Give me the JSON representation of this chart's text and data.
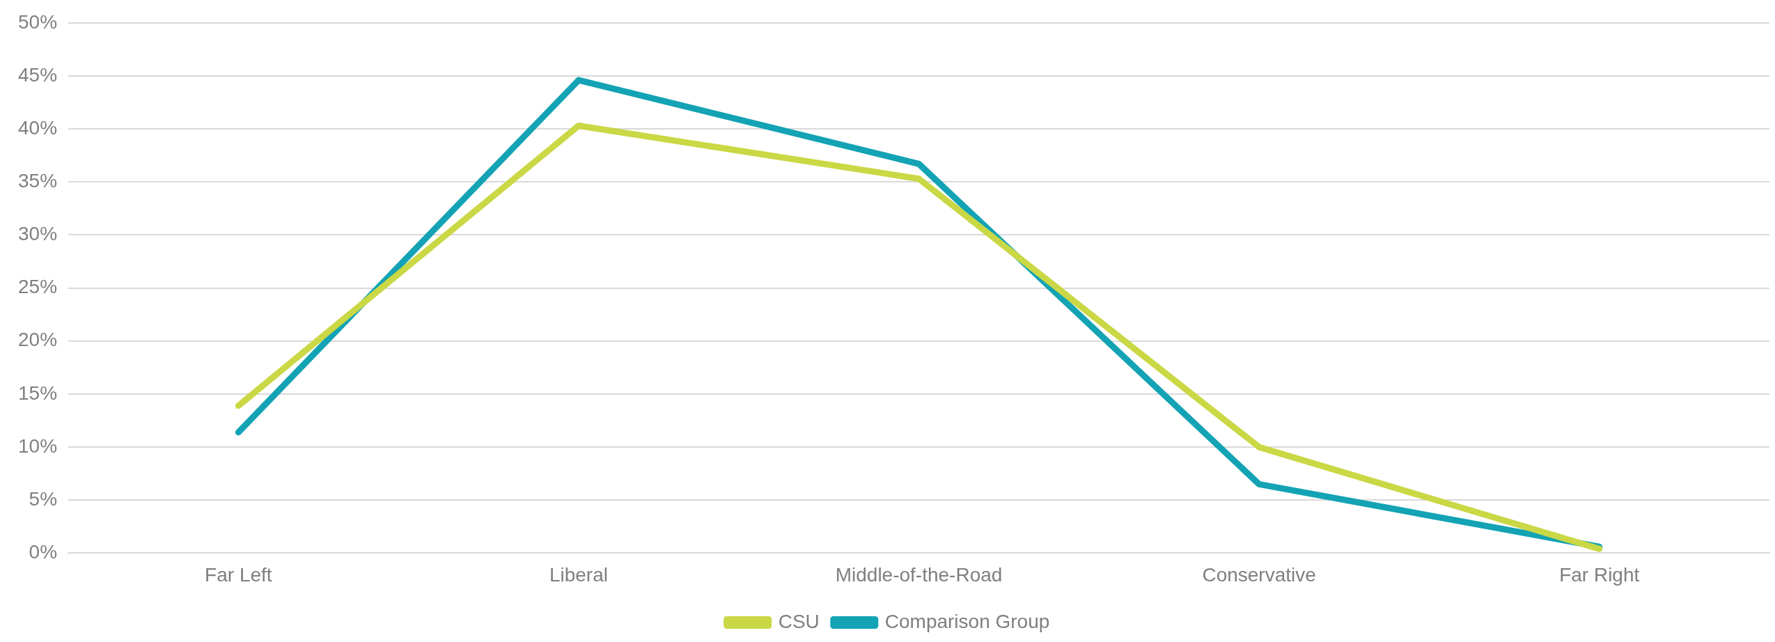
{
  "chart_data": {
    "type": "line",
    "categories": [
      "Far Left",
      "Liberal",
      "Middle-of-the-Road",
      "Conservative",
      "Far Right"
    ],
    "series": [
      {
        "name": "CSU",
        "color": "#c9d844",
        "values": [
          13.9,
          40.3,
          35.3,
          10.0,
          0.4
        ]
      },
      {
        "name": "Comparison Group",
        "color": "#13a3b4",
        "values": [
          11.4,
          44.6,
          36.7,
          6.5,
          0.6
        ]
      }
    ],
    "ylim": [
      0,
      50
    ],
    "yticks": [
      {
        "value": 0,
        "label": "0%"
      },
      {
        "value": 5,
        "label": "5%"
      },
      {
        "value": 10,
        "label": "10%"
      },
      {
        "value": 15,
        "label": "15%"
      },
      {
        "value": 20,
        "label": "20%"
      },
      {
        "value": 25,
        "label": "25%"
      },
      {
        "value": 30,
        "label": "30%"
      },
      {
        "value": 35,
        "label": "35%"
      },
      {
        "value": 40,
        "label": "40%"
      },
      {
        "value": 45,
        "label": "45%"
      },
      {
        "value": 50,
        "label": "50%"
      }
    ],
    "grid": "y",
    "legend": "bottom",
    "marker": "none",
    "line_style": "solid"
  }
}
